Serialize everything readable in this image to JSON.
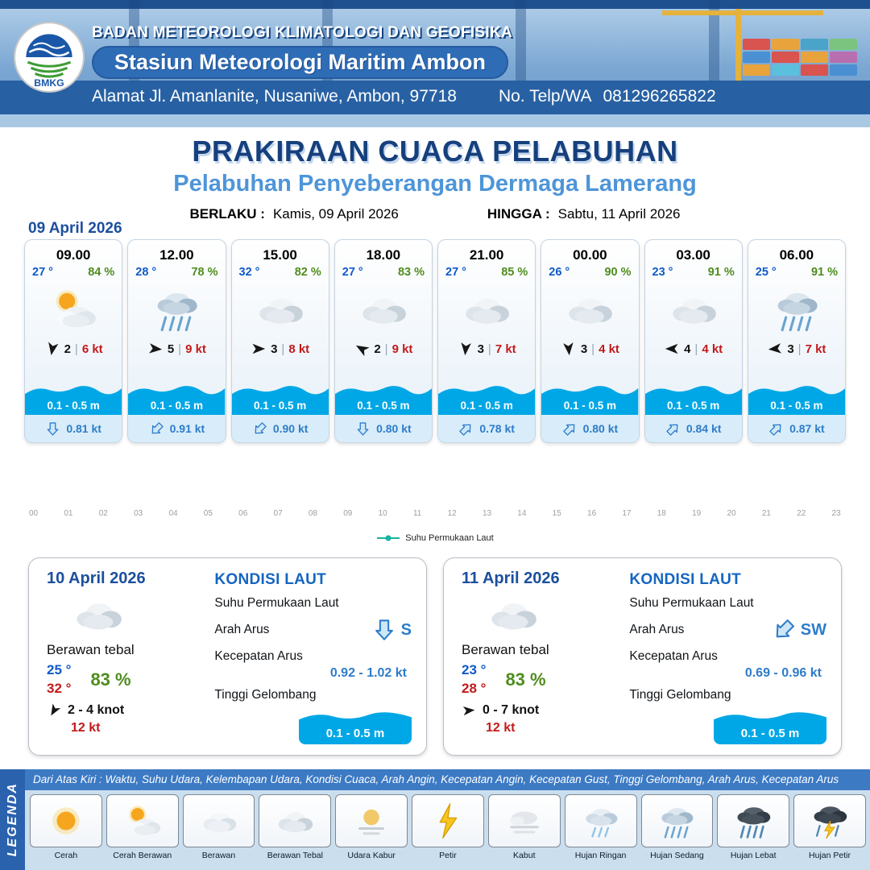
{
  "header": {
    "agency": "BADAN METEOROLOGI KLIMATOLOGI DAN GEOFISIKA",
    "station": "Stasiun Meteorologi Maritim Ambon",
    "address": "Alamat Jl. Amanlanite, Nusaniwe, Ambon, 97718",
    "phone_label": "No. Telp/WA",
    "phone": "081296265822",
    "logo_text": "BMKG"
  },
  "title": {
    "main": "PRAKIRAAN CUACA PELABUHAN",
    "subtitle": "Pelabuhan Penyeberangan Dermaga Lamerang",
    "valid_from_label": "BERLAKU :",
    "valid_from": "Kamis, 09 April 2026",
    "valid_to_label": "HINGGA :",
    "valid_to": "Sabtu, 11 April 2026"
  },
  "period_label": "09 April 2026",
  "ui": {
    "divider": "|"
  },
  "hourly": [
    {
      "time": "09.00",
      "temp": "27 °",
      "humidity": "84 %",
      "icon": "sun-cloud",
      "wind_deg": 190,
      "wind_force": "2",
      "wind_speed": "6 kt",
      "wave": "0.1 - 0.5 m",
      "current_deg": 180,
      "current_speed": "0.81 kt"
    },
    {
      "time": "12.00",
      "temp": "28 °",
      "humidity": "78 %",
      "icon": "rain-moderate",
      "wind_deg": 95,
      "wind_force": "5",
      "wind_speed": "9 kt",
      "wave": "0.1 - 0.5 m",
      "current_deg": 225,
      "current_speed": "0.91 kt"
    },
    {
      "time": "15.00",
      "temp": "32 °",
      "humidity": "82 %",
      "icon": "cloud-thick",
      "wind_deg": 90,
      "wind_force": "3",
      "wind_speed": "8 kt",
      "wave": "0.1 - 0.5 m",
      "current_deg": 225,
      "current_speed": "0.90 kt"
    },
    {
      "time": "18.00",
      "temp": "27 °",
      "humidity": "83 %",
      "icon": "cloud-thick",
      "wind_deg": 300,
      "wind_force": "2",
      "wind_speed": "9 kt",
      "wave": "0.1 - 0.5 m",
      "current_deg": 180,
      "current_speed": "0.80 kt"
    },
    {
      "time": "21.00",
      "temp": "27 °",
      "humidity": "85 %",
      "icon": "cloud-thick",
      "wind_deg": 185,
      "wind_force": "3",
      "wind_speed": "7 kt",
      "wave": "0.1 - 0.5 m",
      "current_deg": 45,
      "current_speed": "0.78 kt"
    },
    {
      "time": "00.00",
      "temp": "26 °",
      "humidity": "90 %",
      "icon": "cloud-thick",
      "wind_deg": 175,
      "wind_force": "3",
      "wind_speed": "4 kt",
      "wave": "0.1 - 0.5 m",
      "current_deg": 45,
      "current_speed": "0.80 kt"
    },
    {
      "time": "03.00",
      "temp": "23 °",
      "humidity": "91 %",
      "icon": "cloud-thick",
      "wind_deg": 270,
      "wind_force": "4",
      "wind_speed": "4 kt",
      "wave": "0.1 - 0.5 m",
      "current_deg": 45,
      "current_speed": "0.84 kt"
    },
    {
      "time": "06.00",
      "temp": "25 °",
      "humidity": "91 %",
      "icon": "rain-moderate",
      "wind_deg": 265,
      "wind_force": "3",
      "wind_speed": "7 kt",
      "wave": "0.1 - 0.5 m",
      "current_deg": 45,
      "current_speed": "0.87 kt"
    }
  ],
  "chart": {
    "hours": [
      "00",
      "01",
      "02",
      "03",
      "04",
      "05",
      "06",
      "07",
      "08",
      "09",
      "10",
      "11",
      "12",
      "13",
      "14",
      "15",
      "16",
      "17",
      "18",
      "19",
      "20",
      "21",
      "22",
      "23"
    ],
    "legend_label": "Suhu Permukaan Laut"
  },
  "chart_data": {
    "type": "line",
    "x_tick_labels": [
      "00",
      "01",
      "02",
      "03",
      "04",
      "05",
      "06",
      "07",
      "08",
      "09",
      "10",
      "11",
      "12",
      "13",
      "14",
      "15",
      "16",
      "17",
      "18",
      "19",
      "20",
      "21",
      "22",
      "23"
    ],
    "series": [
      {
        "name": "Suhu Permukaan Laut",
        "color": "#17b3a3",
        "values": []
      }
    ],
    "grid": false,
    "legend_position": "bottom"
  },
  "daily": [
    {
      "date": "10 April 2026",
      "icon": "cloud-thick",
      "condition": "Berawan tebal",
      "temp_min": "25 °",
      "temp_max": "32 °",
      "humidity": "83 %",
      "wind_deg": 210,
      "wind_range": "2 - 4 knot",
      "gust": "12 kt",
      "sea": {
        "heading": "KONDISI LAUT",
        "sst_label": "Suhu Permukaan Laut",
        "current_dir_label": "Arah Arus",
        "current_dir": "S",
        "current_dir_deg": 180,
        "current_speed_label": "Kecepatan Arus",
        "current_speed": "0.92 - 1.02 kt",
        "wave_label": "Tinggi Gelombang",
        "wave": "0.1 - 0.5 m"
      }
    },
    {
      "date": "11 April 2026",
      "icon": "cloud-thick",
      "condition": "Berawan tebal",
      "temp_min": "23 °",
      "temp_max": "28 °",
      "humidity": "83 %",
      "wind_deg": 85,
      "wind_range": "0 - 7 knot",
      "gust": "12 kt",
      "sea": {
        "heading": "KONDISI LAUT",
        "sst_label": "Suhu Permukaan Laut",
        "current_dir_label": "Arah Arus",
        "current_dir": "SW",
        "current_dir_deg": 225,
        "current_speed_label": "Kecepatan Arus",
        "current_speed": "0.69 - 0.96 kt",
        "wave_label": "Tinggi Gelombang",
        "wave": "0.1 - 0.5 m"
      }
    }
  ],
  "legend": {
    "title": "LEGENDA",
    "description": "Dari Atas Kiri : Waktu, Suhu Udara, Kelembapan Udara, Kondisi Cuaca, Arah Angin, Kecepatan Angin, Kecepatan Gust, Tinggi Gelombang, Arah Arus, Kecepatan Arus",
    "items": [
      {
        "label": "Cerah",
        "icon": "sun"
      },
      {
        "label": "Cerah Berawan",
        "icon": "sun-cloud"
      },
      {
        "label": "Berawan",
        "icon": "cloud"
      },
      {
        "label": "Berawan Tebal",
        "icon": "cloud-thick"
      },
      {
        "label": "Udara Kabur",
        "icon": "haze"
      },
      {
        "label": "Petir",
        "icon": "lightning"
      },
      {
        "label": "Kabut",
        "icon": "fog"
      },
      {
        "label": "Hujan Ringan",
        "icon": "rain-light"
      },
      {
        "label": "Hujan Sedang",
        "icon": "rain-moderate"
      },
      {
        "label": "Hujan Lebat",
        "icon": "rain-heavy"
      },
      {
        "label": "Hujan Petir",
        "icon": "rain-thunder"
      }
    ]
  },
  "colors": {
    "temp_blue": "#0f5ac8",
    "humidity_green": "#4f8c1d",
    "wind_speed_red": "#c21a1a",
    "wave_blue": "#00a7e6",
    "current_blue": "#2e7cc9",
    "title_navy": "#16407d",
    "subtitle_blue": "#4e95d8",
    "header_blue": "#2f6cb6",
    "legend_bar_blue": "#3c7ac4",
    "sst_legend_teal": "#17b3a3"
  }
}
